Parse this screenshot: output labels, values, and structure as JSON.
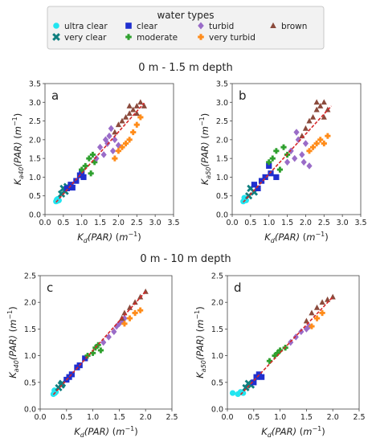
{
  "legend": {
    "title": "water types",
    "items": [
      {
        "label": "ultra clear",
        "marker": "circle",
        "color": "#22e5f0"
      },
      {
        "label": "very clear",
        "marker": "x",
        "color": "#0f7f7f"
      },
      {
        "label": "clear",
        "marker": "square",
        "color": "#1f2fcf"
      },
      {
        "label": "moderate",
        "marker": "plus",
        "color": "#2ea02e"
      },
      {
        "label": "turbid",
        "marker": "diamond",
        "color": "#9a6cc8"
      },
      {
        "label": "very turbid",
        "marker": "plus",
        "color": "#ff8c1a"
      },
      {
        "label": "brown",
        "marker": "triangle",
        "color": "#8b4a3c"
      }
    ]
  },
  "section_titles": {
    "top": "0 m - 1.5 m depth",
    "bottom": "0 m - 10 m depth"
  },
  "chart_data": [
    {
      "type": "scatter",
      "panel_label": "a",
      "xlabel": "K_d(PAR) (m^-1)",
      "ylabel": "K_a40(PAR) (m^-1)",
      "xlim": [
        0,
        3.5
      ],
      "ylim": [
        0,
        3.5
      ],
      "ticks": [
        "0.0",
        "0.5",
        "1.0",
        "1.5",
        "2.0",
        "2.5",
        "3.0",
        "3.5"
      ],
      "fit_line": {
        "color": "#d62728",
        "x": [
          0.3,
          2.7
        ],
        "y": [
          0.33,
          2.98
        ]
      },
      "series": [
        {
          "name": "ultra clear",
          "x": [
            0.3,
            0.32,
            0.35,
            0.38,
            0.33
          ],
          "y": [
            0.35,
            0.4,
            0.42,
            0.38,
            0.36
          ]
        },
        {
          "name": "very clear",
          "x": [
            0.45,
            0.5,
            0.55,
            0.6
          ],
          "y": [
            0.55,
            0.7,
            0.62,
            0.75
          ]
        },
        {
          "name": "clear",
          "x": [
            0.6,
            0.7,
            0.75,
            0.85,
            0.95,
            1.0,
            1.05
          ],
          "y": [
            0.7,
            0.8,
            0.72,
            0.9,
            1.05,
            1.15,
            1.0
          ]
        },
        {
          "name": "moderate",
          "x": [
            1.0,
            1.1,
            1.2,
            1.25,
            1.3,
            1.35
          ],
          "y": [
            1.2,
            1.3,
            1.5,
            1.1,
            1.6,
            1.4
          ]
        },
        {
          "name": "turbid",
          "x": [
            1.4,
            1.5,
            1.6,
            1.7,
            1.75,
            1.85,
            1.9,
            2.0,
            1.8,
            1.65
          ],
          "y": [
            1.5,
            1.8,
            1.6,
            1.9,
            2.1,
            1.7,
            2.0,
            1.85,
            2.3,
            2.0
          ]
        },
        {
          "name": "very turbid",
          "x": [
            1.9,
            2.0,
            2.1,
            2.2,
            2.3,
            2.4,
            2.5,
            2.6
          ],
          "y": [
            1.5,
            1.7,
            1.8,
            1.9,
            2.0,
            2.2,
            2.4,
            2.6
          ]
        },
        {
          "name": "brown",
          "x": [
            1.9,
            2.0,
            2.1,
            2.2,
            2.3,
            2.4,
            2.5,
            2.6,
            2.7,
            2.3,
            2.5
          ],
          "y": [
            2.2,
            2.4,
            2.5,
            2.6,
            2.7,
            2.8,
            2.9,
            3.0,
            2.9,
            2.9,
            2.7
          ]
        }
      ]
    },
    {
      "type": "scatter",
      "panel_label": "b",
      "xlabel": "K_d(PAR) (m^-1)",
      "ylabel": "K_a50(PAR) (m^-1)",
      "xlim": [
        0,
        3.5
      ],
      "ylim": [
        0,
        3.5
      ],
      "ticks": [
        "0.0",
        "0.5",
        "1.0",
        "1.5",
        "2.0",
        "2.5",
        "3.0",
        "3.5"
      ],
      "fit_line": {
        "color": "#d62728",
        "x": [
          0.3,
          2.7
        ],
        "y": [
          0.33,
          2.9
        ]
      },
      "series": [
        {
          "name": "ultra clear",
          "x": [
            0.3,
            0.35,
            0.38,
            0.33
          ],
          "y": [
            0.35,
            0.42,
            0.38,
            0.45
          ]
        },
        {
          "name": "very clear",
          "x": [
            0.45,
            0.5,
            0.6
          ],
          "y": [
            0.5,
            0.7,
            0.6
          ]
        },
        {
          "name": "clear",
          "x": [
            0.6,
            0.7,
            0.8,
            0.9,
            1.0,
            1.05,
            1.2
          ],
          "y": [
            0.8,
            0.7,
            0.9,
            1.0,
            1.3,
            1.1,
            1.0
          ]
        },
        {
          "name": "moderate",
          "x": [
            1.0,
            1.1,
            1.2,
            1.3,
            1.4,
            1.5
          ],
          "y": [
            1.4,
            1.5,
            1.7,
            1.2,
            1.8,
            1.6
          ]
        },
        {
          "name": "turbid",
          "x": [
            1.5,
            1.6,
            1.7,
            1.8,
            1.9,
            2.0,
            2.1,
            1.75,
            1.95
          ],
          "y": [
            1.4,
            1.7,
            1.5,
            2.0,
            1.6,
            1.9,
            1.3,
            2.2,
            1.4
          ]
        },
        {
          "name": "very turbid",
          "x": [
            2.1,
            2.2,
            2.3,
            2.4,
            2.5,
            2.6
          ],
          "y": [
            1.7,
            1.8,
            1.9,
            2.0,
            1.9,
            2.1
          ]
        },
        {
          "name": "brown",
          "x": [
            1.9,
            2.0,
            2.1,
            2.2,
            2.3,
            2.4,
            2.5,
            2.6,
            2.3,
            2.5
          ],
          "y": [
            2.1,
            2.3,
            2.5,
            2.6,
            2.8,
            2.9,
            3.0,
            2.8,
            3.0,
            2.6
          ]
        }
      ]
    },
    {
      "type": "scatter",
      "panel_label": "c",
      "xlabel": "K_d(PAR) (m^-1)",
      "ylabel": "K_a40(PAR) (m^-1)",
      "xlim": [
        0,
        2.5
      ],
      "ylim": [
        0,
        2.5
      ],
      "ticks": [
        "0.0",
        "0.5",
        "1.0",
        "1.5",
        "2.0",
        "2.5"
      ],
      "fit_line": {
        "color": "#d62728",
        "x": [
          0.25,
          2.0
        ],
        "y": [
          0.27,
          2.2
        ]
      },
      "series": [
        {
          "name": "ultra clear",
          "x": [
            0.25,
            0.28,
            0.3,
            0.27
          ],
          "y": [
            0.28,
            0.3,
            0.32,
            0.35
          ]
        },
        {
          "name": "very clear",
          "x": [
            0.35,
            0.4,
            0.42
          ],
          "y": [
            0.4,
            0.45,
            0.48
          ]
        },
        {
          "name": "clear",
          "x": [
            0.5,
            0.55,
            0.6,
            0.7,
            0.75,
            0.85
          ],
          "y": [
            0.55,
            0.6,
            0.65,
            0.78,
            0.82,
            0.95
          ]
        },
        {
          "name": "moderate",
          "x": [
            0.9,
            1.0,
            1.05,
            1.1,
            1.15
          ],
          "y": [
            1.0,
            1.05,
            1.15,
            1.2,
            1.1
          ]
        },
        {
          "name": "turbid",
          "x": [
            1.2,
            1.3,
            1.4,
            1.45,
            1.5,
            1.55,
            1.6
          ],
          "y": [
            1.25,
            1.35,
            1.45,
            1.55,
            1.6,
            1.65,
            1.7
          ]
        },
        {
          "name": "very turbid",
          "x": [
            1.6,
            1.7,
            1.8,
            1.9
          ],
          "y": [
            1.6,
            1.7,
            1.8,
            1.85
          ]
        },
        {
          "name": "brown",
          "x": [
            1.55,
            1.6,
            1.7,
            1.8,
            1.9,
            2.0
          ],
          "y": [
            1.7,
            1.8,
            1.9,
            2.0,
            2.1,
            2.2
          ]
        }
      ]
    },
    {
      "type": "scatter",
      "panel_label": "d",
      "xlabel": "K_d(PAR) (m^-1)",
      "ylabel": "K_a50(PAR) (m^-1)",
      "xlim": [
        0,
        2.5
      ],
      "ylim": [
        0,
        2.5
      ],
      "ticks": [
        "0.0",
        "0.5",
        "1.0",
        "1.5",
        "2.0",
        "2.5"
      ],
      "fit_line": {
        "color": "#d62728",
        "x": [
          0.25,
          2.0
        ],
        "y": [
          0.27,
          2.1
        ]
      },
      "series": [
        {
          "name": "ultra clear",
          "x": [
            0.1,
            0.2,
            0.25,
            0.3
          ],
          "y": [
            0.3,
            0.28,
            0.32,
            0.3
          ]
        },
        {
          "name": "very clear",
          "x": [
            0.35,
            0.4,
            0.45
          ],
          "y": [
            0.4,
            0.48,
            0.45
          ]
        },
        {
          "name": "clear",
          "x": [
            0.5,
            0.55,
            0.6,
            0.65
          ],
          "y": [
            0.5,
            0.6,
            0.65,
            0.6
          ]
        },
        {
          "name": "moderate",
          "x": [
            0.8,
            0.9,
            0.95,
            1.0,
            1.1
          ],
          "y": [
            0.9,
            1.0,
            1.05,
            1.1,
            1.15
          ]
        },
        {
          "name": "turbid",
          "x": [
            1.2,
            1.3,
            1.4,
            1.5,
            1.55
          ],
          "y": [
            1.25,
            1.35,
            1.45,
            1.5,
            1.55
          ]
        },
        {
          "name": "very turbid",
          "x": [
            1.6,
            1.7,
            1.8
          ],
          "y": [
            1.55,
            1.7,
            1.8
          ]
        },
        {
          "name": "brown",
          "x": [
            1.5,
            1.6,
            1.7,
            1.8,
            1.9,
            2.0
          ],
          "y": [
            1.65,
            1.8,
            1.9,
            2.0,
            2.05,
            2.1
          ]
        }
      ]
    }
  ]
}
